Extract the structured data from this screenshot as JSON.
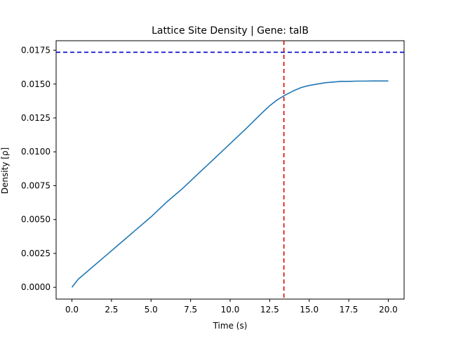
{
  "chart_data": {
    "type": "line",
    "title": "Lattice Site Density | Gene: talB",
    "xlabel": "Time (s)",
    "ylabel": "Density [ρ]",
    "xlim": [
      -1.0,
      21.0
    ],
    "ylim": [
      -0.00087,
      0.0182
    ],
    "xticks": [
      "0.0",
      "2.5",
      "5.0",
      "7.5",
      "10.0",
      "12.5",
      "15.0",
      "17.5",
      "20.0"
    ],
    "yticks": [
      "0.0000",
      "0.0025",
      "0.0050",
      "0.0075",
      "0.0100",
      "0.0125",
      "0.0150",
      "0.0175"
    ],
    "grid": false,
    "series": [
      {
        "color": "#1f77b4",
        "x": [
          0,
          0.4,
          1,
          2,
          3,
          4,
          5,
          6,
          7,
          8,
          9,
          10,
          11,
          12,
          12.5,
          13,
          13.5,
          14,
          14.5,
          15,
          15.5,
          16,
          16.5,
          17,
          17.5,
          18,
          18.5,
          19,
          19.5,
          20
        ],
        "y": [
          0.0,
          0.0006,
          0.0012,
          0.0022,
          0.0032,
          0.0042,
          0.0052,
          0.0063,
          0.0073,
          0.0084,
          0.0095,
          0.0106,
          0.0117,
          0.01285,
          0.0134,
          0.01385,
          0.0142,
          0.0145,
          0.01475,
          0.0149,
          0.015,
          0.0151,
          0.01515,
          0.0152,
          0.0152,
          0.01522,
          0.01522,
          0.01523,
          0.01523,
          0.01523
        ]
      }
    ],
    "hlines": [
      {
        "y": 0.01735,
        "color": "#0000cc",
        "style": "dashed"
      }
    ],
    "vlines": [
      {
        "x": 13.4,
        "color": "#dd0000",
        "style": "dashed"
      }
    ]
  }
}
